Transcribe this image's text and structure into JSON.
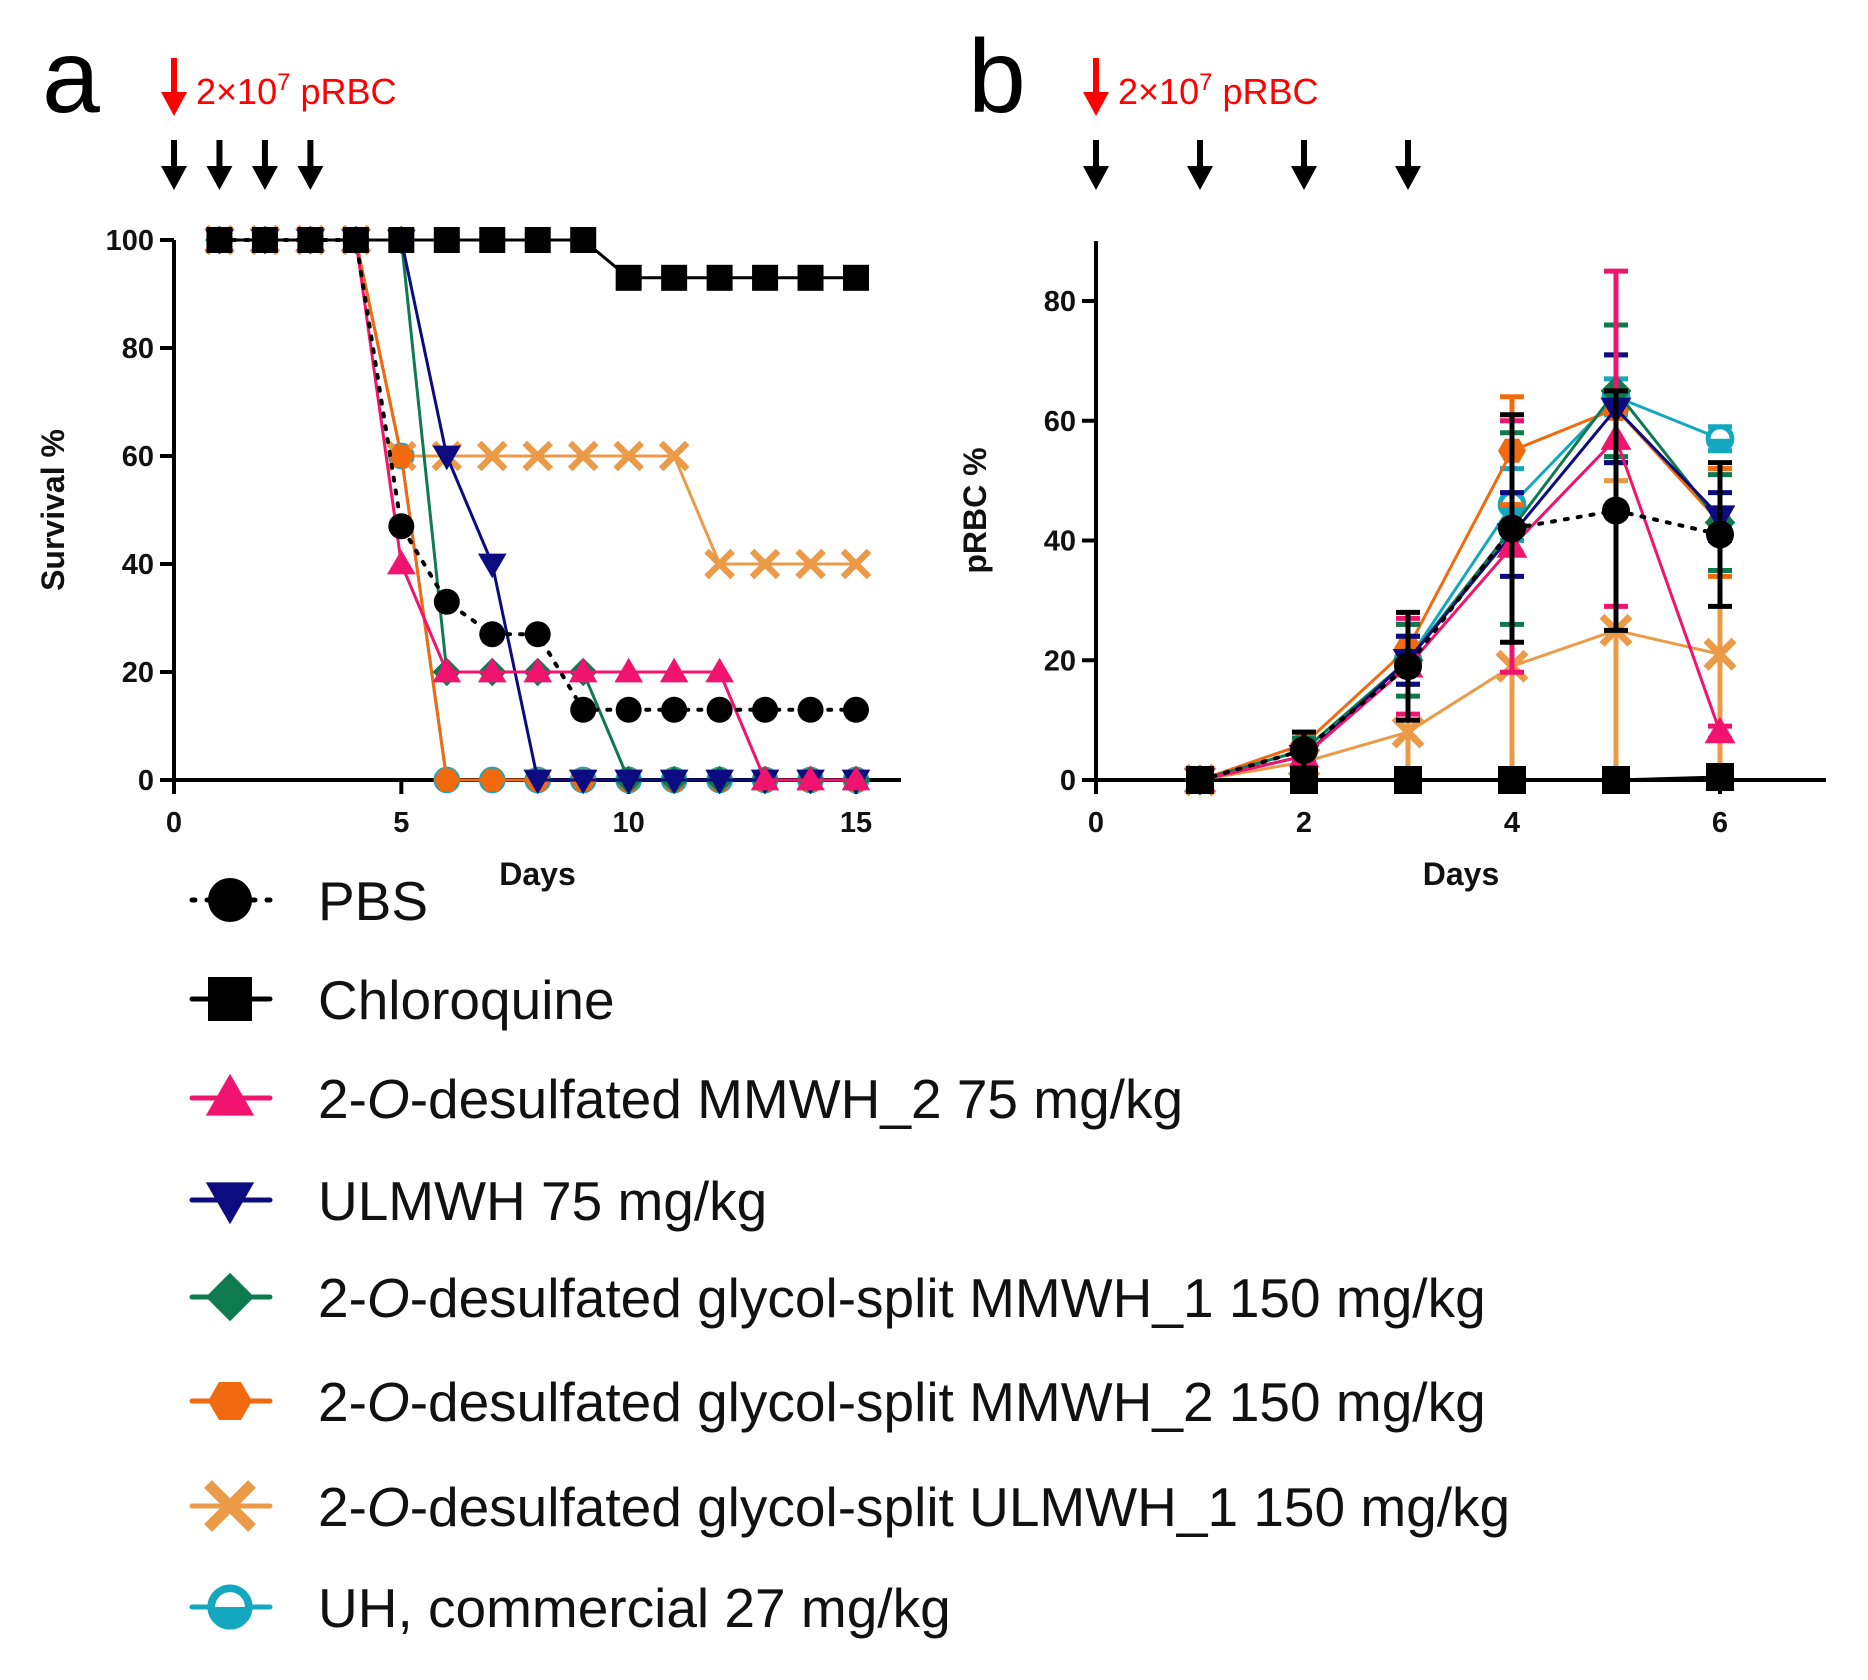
{
  "legend": [
    {
      "name": "PBS",
      "color": "#000000",
      "marker": "circle",
      "dash": true
    },
    {
      "name": "Chloroquine",
      "color": "#000000",
      "marker": "square"
    },
    {
      "name": "2-O-desulfated MMWH_2 75 mg/kg",
      "color": "#f0146e",
      "marker": "triangle-up"
    },
    {
      "name": "ULMWH 75 mg/kg",
      "color": "#0c0c80",
      "marker": "triangle-down"
    },
    {
      "name": "2-O-desulfated glycol-split MMWH_1 150 mg/kg",
      "color": "#0f7a4f",
      "marker": "diamond"
    },
    {
      "name": "2-O-desulfated glycol-split MMWH_2 150 mg/kg",
      "color": "#f26a10",
      "marker": "hexagon"
    },
    {
      "name": "2-O-desulfated glycol-split ULMWH_1 150 mg/kg",
      "color": "#eb9a48",
      "marker": "x"
    },
    {
      "name": "UH, commercial 27 mg/kg",
      "color": "#14a8c0",
      "marker": "circle-half"
    }
  ],
  "chart_data": [
    {
      "type": "line",
      "panel_label": "a",
      "injection_label": "2×10",
      "injection_exp": "7",
      "injection_suffix": " pRBC",
      "xlabel": "Days",
      "ylabel": "Survival %",
      "xlim": [
        0,
        16
      ],
      "ylim": [
        0,
        100
      ],
      "xticks": [
        0,
        5,
        10,
        15
      ],
      "yticks": [
        0,
        20,
        40,
        60,
        80,
        100
      ],
      "dose_days": [
        0,
        1,
        2,
        3
      ],
      "series": [
        {
          "name": "PBS",
          "x": [
            1,
            2,
            3,
            4,
            5,
            6,
            7,
            8,
            9,
            10,
            11,
            12,
            13,
            14,
            15
          ],
          "values": [
            100,
            100,
            100,
            100,
            47,
            33,
            27,
            27,
            13,
            13,
            13,
            13,
            13,
            13,
            13
          ]
        },
        {
          "name": "Chloroquine",
          "x": [
            1,
            2,
            3,
            4,
            5,
            6,
            7,
            8,
            9,
            10,
            11,
            12,
            13,
            14,
            15
          ],
          "values": [
            100,
            100,
            100,
            100,
            100,
            100,
            100,
            100,
            100,
            93,
            93,
            93,
            93,
            93,
            93
          ]
        },
        {
          "name": "2-O-desulfated MMWH_2 75 mg/kg",
          "x": [
            1,
            2,
            3,
            4,
            5,
            6,
            7,
            8,
            9,
            10,
            11,
            12,
            13,
            14,
            15
          ],
          "values": [
            100,
            100,
            100,
            100,
            40,
            20,
            20,
            20,
            20,
            20,
            20,
            20,
            0,
            0,
            0
          ]
        },
        {
          "name": "ULMWH 75 mg/kg",
          "x": [
            1,
            2,
            3,
            4,
            5,
            6,
            7,
            8,
            9,
            10,
            11,
            12,
            13,
            14,
            15
          ],
          "values": [
            100,
            100,
            100,
            100,
            100,
            60,
            40,
            0,
            0,
            0,
            0,
            0,
            0,
            0,
            0
          ]
        },
        {
          "name": "2-O-desulfated glycol-split MMWH_1 150 mg/kg",
          "x": [
            1,
            2,
            3,
            4,
            5,
            6,
            7,
            8,
            9,
            10,
            11,
            12,
            13,
            14,
            15
          ],
          "values": [
            100,
            100,
            100,
            100,
            100,
            20,
            20,
            20,
            20,
            0,
            0,
            0,
            0,
            0,
            0
          ]
        },
        {
          "name": "2-O-desulfated glycol-split MMWH_2 150 mg/kg",
          "x": [
            1,
            2,
            3,
            4,
            5,
            6,
            7,
            8,
            9,
            10,
            11,
            12,
            13,
            14,
            15
          ],
          "values": [
            100,
            100,
            100,
            100,
            60,
            0,
            0,
            0,
            0,
            0,
            0,
            0,
            0,
            0,
            0
          ]
        },
        {
          "name": "2-O-desulfated glycol-split ULMWH_1 150 mg/kg",
          "x": [
            1,
            2,
            3,
            4,
            5,
            6,
            7,
            8,
            9,
            10,
            11,
            12,
            13,
            14,
            15
          ],
          "values": [
            100,
            100,
            100,
            100,
            60,
            60,
            60,
            60,
            60,
            60,
            60,
            40,
            40,
            40,
            40
          ]
        },
        {
          "name": "UH, commercial 27 mg/kg",
          "x": [
            1,
            2,
            3,
            4,
            5,
            6,
            7,
            8,
            9,
            10,
            11,
            12,
            13,
            14,
            15
          ],
          "values": [
            100,
            100,
            100,
            100,
            60,
            0,
            0,
            0,
            0,
            0,
            0,
            0,
            0,
            0,
            0
          ]
        }
      ]
    },
    {
      "type": "line",
      "panel_label": "b",
      "injection_label": "2×10",
      "injection_exp": "7",
      "injection_suffix": " pRBC",
      "xlabel": "Days",
      "ylabel": "pRBC %",
      "xlim": [
        0,
        7
      ],
      "ylim": [
        0,
        90
      ],
      "xticks": [
        0,
        2,
        4,
        6
      ],
      "yticks": [
        0,
        20,
        40,
        60,
        80
      ],
      "dose_days": [
        0,
        1,
        2,
        3
      ],
      "series": [
        {
          "name": "PBS",
          "x": [
            1,
            2,
            3,
            4,
            5,
            6
          ],
          "values": [
            0,
            5,
            19,
            42,
            45,
            41
          ],
          "error": [
            0,
            3,
            9,
            19,
            20,
            12
          ]
        },
        {
          "name": "Chloroquine",
          "x": [
            1,
            2,
            3,
            4,
            5,
            6
          ],
          "values": [
            0,
            0,
            0,
            0,
            0,
            0.5
          ],
          "error": [
            0,
            0,
            0,
            0,
            0,
            0
          ]
        },
        {
          "name": "2-O-desulfated MMWH_2 75 mg/kg",
          "x": [
            1,
            2,
            3,
            4,
            5,
            6
          ],
          "values": [
            0,
            4,
            19,
            39,
            57,
            8
          ],
          "error": [
            0,
            2,
            8,
            21,
            28,
            1
          ]
        },
        {
          "name": "ULMWH 75 mg/kg",
          "x": [
            1,
            2,
            3,
            4,
            5,
            6
          ],
          "values": [
            0,
            4,
            20,
            41,
            62,
            44
          ],
          "error": [
            0,
            2,
            4,
            7,
            9,
            4
          ]
        },
        {
          "name": "2-O-desulfated glycol-split MMWH_1 150 mg/kg",
          "x": [
            1,
            2,
            3,
            4,
            5,
            6
          ],
          "values": [
            0,
            5,
            20,
            42,
            65,
            43
          ],
          "error": [
            0,
            2,
            6,
            16,
            11,
            8
          ]
        },
        {
          "name": "2-O-desulfated glycol-split MMWH_2 150 mg/kg",
          "x": [
            1,
            2,
            3,
            4,
            5,
            6
          ],
          "values": [
            0,
            6,
            22,
            55,
            62,
            43
          ],
          "error": [
            0,
            2,
            4,
            9,
            9,
            9
          ]
        },
        {
          "name": "2-O-desulfated glycol-split ULMWH_1 150 mg/kg",
          "x": [
            1,
            2,
            3,
            4,
            5,
            6
          ],
          "values": [
            0,
            3,
            8,
            19,
            25,
            21
          ],
          "error": [
            0,
            2,
            8,
            19,
            25,
            21
          ]
        },
        {
          "name": "UH, commercial 27 mg/kg",
          "x": [
            1,
            2,
            3,
            4,
            5,
            6
          ],
          "values": [
            0,
            5,
            20,
            46,
            64,
            57
          ],
          "error": [
            0,
            2,
            4,
            6,
            3,
            2
          ]
        }
      ]
    }
  ]
}
